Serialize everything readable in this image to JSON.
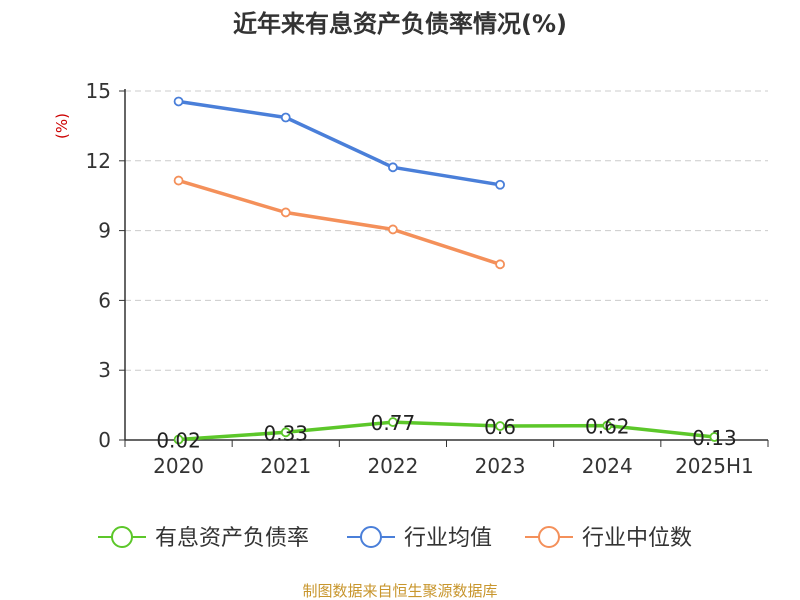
{
  "chart_data": {
    "type": "line",
    "title": "近年来有息资产负债率情况(%)",
    "ylabel": "(%)",
    "categories": [
      "2020",
      "2021",
      "2022",
      "2023",
      "2024",
      "2025H1"
    ],
    "y_ticks": [
      "0",
      "3",
      "6",
      "9",
      "12",
      "15"
    ],
    "ylim": [
      0,
      15
    ],
    "grid": true,
    "legend_position": "bottom",
    "series": [
      {
        "name": "有息资产负债率",
        "color": "#5cc72a",
        "values": [
          0.02,
          0.33,
          0.77,
          0.6,
          0.62,
          0.13
        ],
        "labels": [
          "0.02",
          "0.33",
          "0.77",
          "0.6",
          "0.62",
          "0.13"
        ]
      },
      {
        "name": "行业均值",
        "color": "#4a7fd9",
        "values": [
          14.55,
          13.86,
          11.72,
          10.97,
          null,
          null
        ]
      },
      {
        "name": "行业中位数",
        "color": "#f4905a",
        "values": [
          11.15,
          9.78,
          9.05,
          7.55,
          null,
          null
        ]
      }
    ]
  },
  "source": "制图数据来自恒生聚源数据库",
  "colors": {
    "title": "#333333",
    "axis": "#333333",
    "grid": "#cccccc",
    "ylabel": "#cc0000",
    "source": "#c8962d"
  }
}
